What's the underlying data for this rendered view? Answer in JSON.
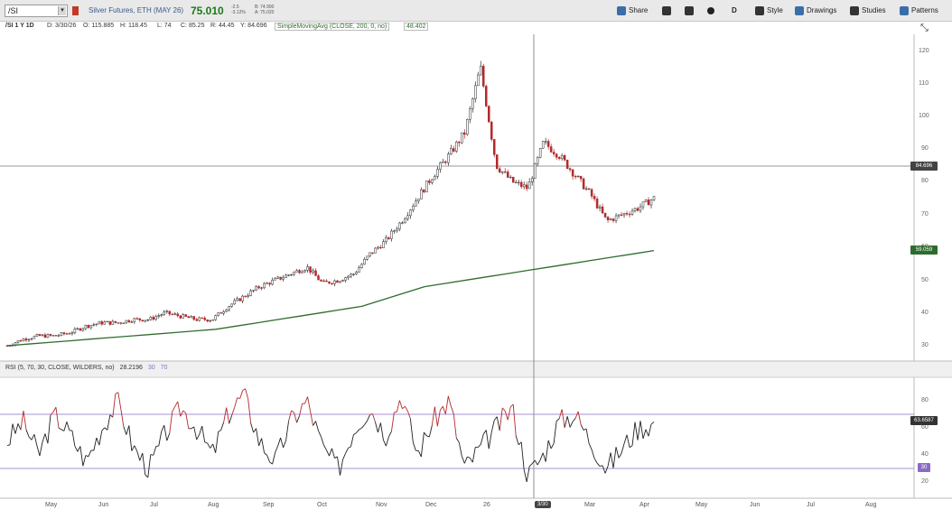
{
  "toolbar": {
    "symbol": "/SI",
    "instrument": "Silver Futures, ETH (MAY 26)",
    "last": "75.010",
    "change_lines": [
      "-2.5",
      "-3.12%"
    ],
    "bidask_lines": [
      "B: 74.990",
      "A: 75.020"
    ],
    "buttons": [
      "Share",
      "Style",
      "Drawings",
      "Studies",
      "Patterns"
    ],
    "interval_letter": "D"
  },
  "infobar": {
    "period": "/SI 1 Y 1D",
    "date": "D: 3/30/26",
    "open": "O: 115.885",
    "high": "H: 118.45",
    "low": "L: 74",
    "close": "C: 85.25",
    "range": "R: 44.45",
    "y": "Y: 84.696",
    "sma_label": "SimpleMovingAvg (CLOSE, 200, 0, no)",
    "sma_value": "48.402"
  },
  "price_axis": {
    "ticks": [
      "120",
      "110",
      "100",
      "90",
      "80",
      "70",
      "60",
      "50",
      "40",
      "30"
    ],
    "crosshair_tag": "84.696",
    "sma_tag": "59.059"
  },
  "rsi": {
    "label": "RSI (5, 70, 30, CLOSE, WILDERS, no)",
    "value": "28.2196",
    "level_low": "30",
    "level_high": "70",
    "ticks": [
      "80",
      "60",
      "40",
      "20"
    ],
    "current_tag": "63.6587",
    "low_tag": "30"
  },
  "x_axis": {
    "labels": [
      "May",
      "Jun",
      "Jul",
      "Aug",
      "Sep",
      "Oct",
      "Nov",
      "Dec",
      "26",
      "Mar",
      "Apr",
      "May",
      "Jun",
      "Jul",
      "Aug"
    ],
    "crosshair_date": "3/30"
  },
  "colors": {
    "up": "#2a2a2a",
    "down": "#b22a2a",
    "sma": "#2e6b2e",
    "rsi_level": "#8a6bc4",
    "rsi_line": "#222222",
    "rsi_overbought": "#b22a2a"
  },
  "chart_data": {
    "type": "line",
    "series": [
      {
        "values": [
          30,
          32,
          33,
          33,
          34,
          36,
          37,
          37,
          38,
          38,
          40,
          39,
          38,
          38,
          42,
          45,
          48,
          50,
          52,
          54,
          49,
          50,
          52,
          58,
          62,
          68,
          75,
          82,
          88,
          95,
          115,
          85,
          80,
          78,
          92,
          88,
          82,
          76,
          68,
          70,
          72,
          75
        ]
      },
      {
        "values": [
          30,
          30.5,
          31,
          31.5,
          32,
          32.5,
          33,
          33.5,
          34,
          34.5,
          35,
          36,
          37,
          38,
          39,
          40,
          41,
          42,
          44,
          46,
          48,
          49,
          50,
          51,
          52,
          53,
          54,
          55,
          56,
          57,
          58,
          59
        ]
      },
      {
        "values": [
          50,
          65,
          40,
          70,
          55,
          35,
          60,
          80,
          45,
          30,
          55,
          75,
          60,
          40,
          70,
          85,
          50,
          35,
          65,
          80,
          45,
          30,
          60,
          75,
          55,
          85,
          40,
          65,
          80,
          30,
          45,
          60,
          75,
          25,
          40,
          65,
          70,
          50,
          30,
          45,
          60,
          63
        ]
      }
    ]
  }
}
